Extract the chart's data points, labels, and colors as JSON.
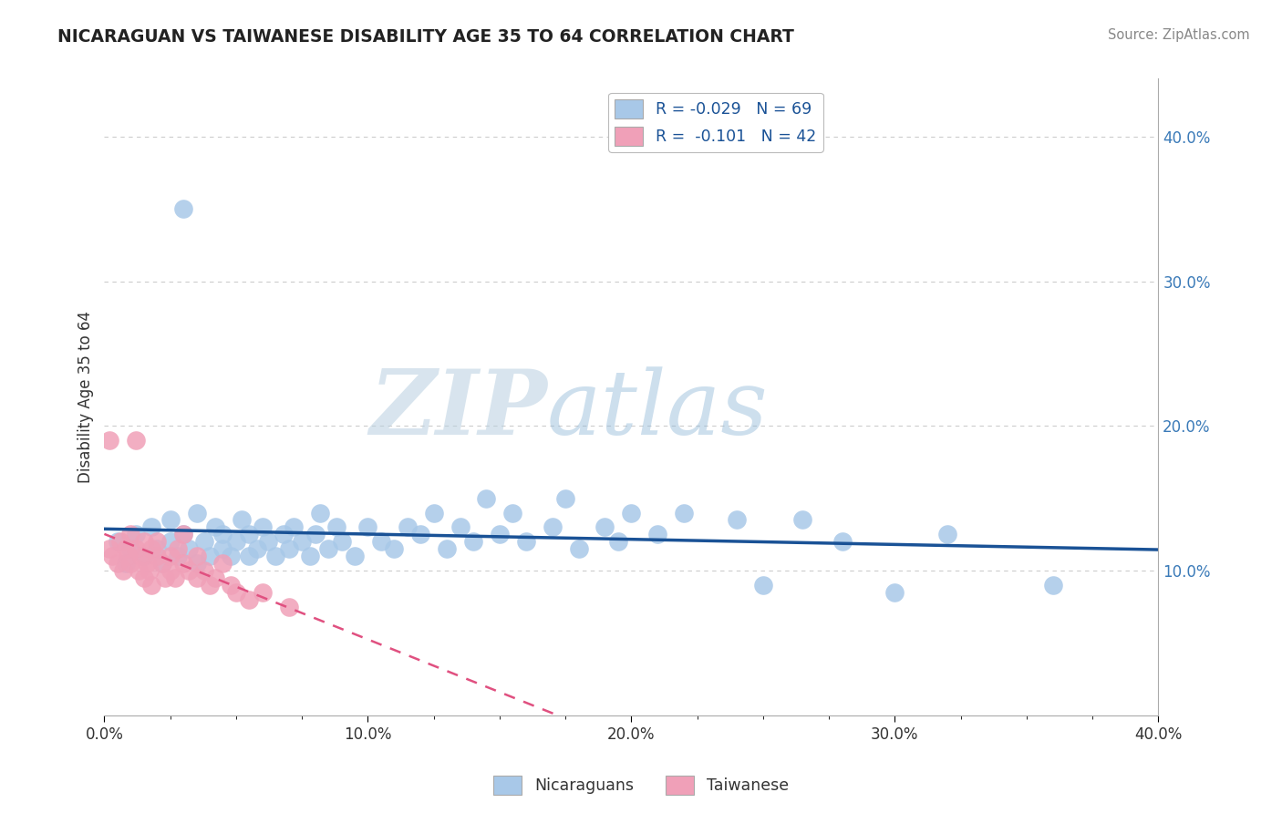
{
  "title": "NICARAGUAN VS TAIWANESE DISABILITY AGE 35 TO 64 CORRELATION CHART",
  "source_text": "Source: ZipAtlas.com",
  "ylabel": "Disability Age 35 to 64",
  "xlim": [
    0.0,
    0.4
  ],
  "ylim": [
    0.0,
    0.44
  ],
  "xtick_major_labels": [
    "0.0%",
    "10.0%",
    "20.0%",
    "30.0%",
    "40.0%"
  ],
  "xtick_major_vals": [
    0.0,
    0.1,
    0.2,
    0.3,
    0.4
  ],
  "xtick_minor_vals": [
    0.025,
    0.05,
    0.075,
    0.125,
    0.15,
    0.175,
    0.225,
    0.25,
    0.275,
    0.325,
    0.35,
    0.375
  ],
  "ytick_labels": [
    "10.0%",
    "20.0%",
    "30.0%",
    "40.0%"
  ],
  "ytick_vals": [
    0.1,
    0.2,
    0.3,
    0.4
  ],
  "legend_entry1": "R = -0.029   N = 69",
  "legend_entry2": "R =  -0.101   N = 42",
  "legend_label1": "Nicaraguans",
  "legend_label2": "Taiwanese",
  "blue_color": "#a8c8e8",
  "blue_line_color": "#1a5296",
  "pink_color": "#f0a0b8",
  "pink_line_color": "#e05080",
  "watermark_zip": "ZIP",
  "watermark_atlas": "atlas",
  "background_color": "#ffffff",
  "grid_color": "#cccccc",
  "blue_x": [
    0.005,
    0.008,
    0.01,
    0.012,
    0.015,
    0.018,
    0.02,
    0.022,
    0.025,
    0.025,
    0.028,
    0.03,
    0.032,
    0.035,
    0.035,
    0.038,
    0.04,
    0.042,
    0.045,
    0.045,
    0.048,
    0.05,
    0.052,
    0.055,
    0.055,
    0.058,
    0.06,
    0.062,
    0.065,
    0.068,
    0.07,
    0.072,
    0.075,
    0.078,
    0.08,
    0.082,
    0.085,
    0.088,
    0.09,
    0.095,
    0.1,
    0.105,
    0.11,
    0.115,
    0.12,
    0.125,
    0.13,
    0.135,
    0.14,
    0.145,
    0.15,
    0.155,
    0.16,
    0.17,
    0.175,
    0.18,
    0.19,
    0.195,
    0.2,
    0.21,
    0.22,
    0.24,
    0.25,
    0.265,
    0.28,
    0.3,
    0.32,
    0.36,
    0.03
  ],
  "blue_y": [
    0.12,
    0.105,
    0.115,
    0.125,
    0.11,
    0.13,
    0.115,
    0.105,
    0.12,
    0.135,
    0.11,
    0.125,
    0.115,
    0.105,
    0.14,
    0.12,
    0.11,
    0.13,
    0.115,
    0.125,
    0.11,
    0.12,
    0.135,
    0.11,
    0.125,
    0.115,
    0.13,
    0.12,
    0.11,
    0.125,
    0.115,
    0.13,
    0.12,
    0.11,
    0.125,
    0.14,
    0.115,
    0.13,
    0.12,
    0.11,
    0.13,
    0.12,
    0.115,
    0.13,
    0.125,
    0.14,
    0.115,
    0.13,
    0.12,
    0.15,
    0.125,
    0.14,
    0.12,
    0.13,
    0.15,
    0.115,
    0.13,
    0.12,
    0.14,
    0.125,
    0.14,
    0.135,
    0.09,
    0.135,
    0.12,
    0.085,
    0.125,
    0.09,
    0.35
  ],
  "pink_x": [
    0.002,
    0.003,
    0.005,
    0.006,
    0.007,
    0.008,
    0.009,
    0.01,
    0.01,
    0.012,
    0.013,
    0.014,
    0.015,
    0.015,
    0.016,
    0.017,
    0.018,
    0.018,
    0.02,
    0.02,
    0.022,
    0.023,
    0.025,
    0.025,
    0.027,
    0.028,
    0.03,
    0.03,
    0.032,
    0.035,
    0.035,
    0.038,
    0.04,
    0.042,
    0.045,
    0.048,
    0.05,
    0.055,
    0.06,
    0.07,
    0.002,
    0.012
  ],
  "pink_y": [
    0.115,
    0.11,
    0.105,
    0.12,
    0.1,
    0.115,
    0.11,
    0.105,
    0.125,
    0.115,
    0.1,
    0.11,
    0.095,
    0.12,
    0.105,
    0.1,
    0.115,
    0.09,
    0.11,
    0.12,
    0.105,
    0.095,
    0.11,
    0.1,
    0.095,
    0.115,
    0.105,
    0.125,
    0.1,
    0.095,
    0.11,
    0.1,
    0.09,
    0.095,
    0.105,
    0.09,
    0.085,
    0.08,
    0.085,
    0.075,
    0.19,
    0.19
  ]
}
